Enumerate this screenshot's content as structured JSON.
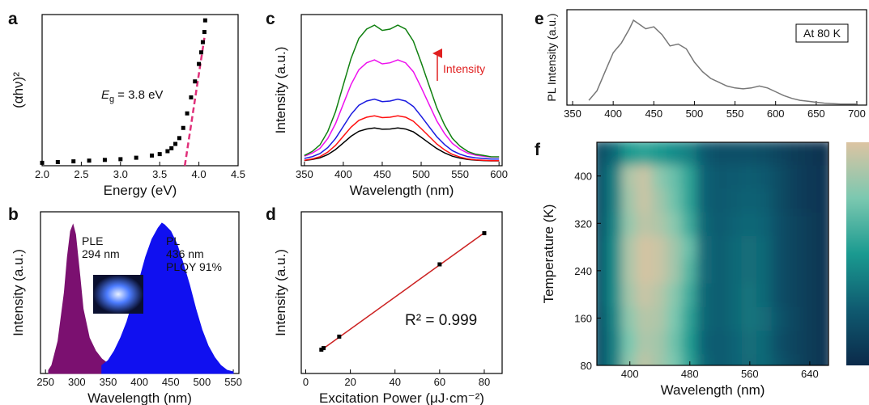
{
  "chart_data": [
    {
      "type": "scatter",
      "panel": "a",
      "x_label": "Energy (eV)",
      "y_label": "(αhν)²",
      "annotation": {
        "symbol": "E",
        "subscript": "g",
        "text": "= 3.8 eV"
      },
      "x": [
        2.0,
        2.2,
        2.4,
        2.6,
        2.8,
        3.0,
        3.2,
        3.4,
        3.5,
        3.6,
        3.65,
        3.7,
        3.75,
        3.8,
        3.85,
        3.9,
        3.95,
        4.0,
        4.03,
        4.05,
        4.07,
        4.08
      ],
      "values": [
        2,
        2.5,
        3,
        3.5,
        4,
        4.5,
        5.5,
        7,
        8,
        10,
        12,
        15,
        19,
        26,
        36,
        47,
        58,
        70,
        78,
        85,
        92,
        100
      ],
      "color": "#000000",
      "fit": {
        "x": [
          3.82,
          4.07
        ],
        "values": [
          0,
          88
        ],
        "color": "#e0307a"
      },
      "xlim": [
        2,
        4.5
      ],
      "ylim": [
        0,
        104
      ],
      "xticks": [
        {
          "value": 2,
          "label": "2.0"
        },
        {
          "value": 2.5,
          "label": "2.5"
        },
        {
          "value": 3,
          "label": "3.0"
        },
        {
          "value": 3.5,
          "label": "3.5"
        },
        {
          "value": 4,
          "label": "4.0"
        },
        {
          "value": 4.5,
          "label": "4.5"
        }
      ]
    },
    {
      "type": "area",
      "panel": "b",
      "x_label": "Wavelength (nm)",
      "y_label": "Intensity (a.u.)",
      "annotations": [
        "PLE",
        "294 nm",
        "PL",
        "436 nm",
        "PLQY 91%"
      ],
      "series": [
        {
          "color": "#7b1070",
          "x": [
            255,
            260,
            270,
            280,
            285,
            290,
            294,
            298,
            305,
            310,
            320,
            330,
            340,
            350,
            355
          ],
          "values": [
            2,
            5,
            20,
            50,
            72,
            88,
            92,
            86,
            60,
            40,
            22,
            14,
            9,
            6,
            2
          ]
        },
        {
          "color": "#1010f0",
          "x": [
            340,
            350,
            360,
            370,
            380,
            390,
            400,
            410,
            420,
            430,
            436,
            440,
            450,
            460,
            470,
            480,
            490,
            500,
            510,
            520,
            530,
            540,
            550
          ],
          "values": [
            5,
            8,
            14,
            22,
            32,
            45,
            58,
            72,
            83,
            90,
            93,
            92,
            88,
            80,
            68,
            55,
            40,
            27,
            17,
            10,
            5,
            2,
            1
          ]
        }
      ],
      "xlim": [
        242,
        559
      ],
      "ylim": [
        0,
        100
      ],
      "xticks": [
        250,
        300,
        350,
        400,
        450,
        500,
        550
      ]
    },
    {
      "type": "line",
      "panel": "c",
      "x_label": "Wavelength (nm)",
      "y_label": "Intensity (a.u.)",
      "annotations": [
        "Intensity"
      ],
      "annotation_color": "#e02020",
      "x": [
        350,
        360,
        370,
        380,
        390,
        400,
        410,
        420,
        430,
        440,
        450,
        460,
        470,
        480,
        490,
        500,
        510,
        520,
        530,
        540,
        550,
        560,
        570,
        580,
        590,
        600
      ],
      "series": [
        {
          "color": "#000000",
          "values": [
            3.4,
            4.1,
            5.2,
            7.4,
            10.7,
            15.1,
            19.5,
            22.8,
            24.3,
            25,
            24.1,
            24.3,
            25,
            24.3,
            22.4,
            18.8,
            15.1,
            11.4,
            8.5,
            6.3,
            5,
            4.1,
            3.7,
            3.4,
            3.2,
            3.2
          ]
        },
        {
          "color": "#ff1010",
          "values": [
            3.6,
            4.5,
            6,
            9,
            13.5,
            19.5,
            25.5,
            30,
            32.1,
            33,
            31.8,
            32.1,
            33,
            32.1,
            29.4,
            24.6,
            19.5,
            14.4,
            10.5,
            7.5,
            5.7,
            4.5,
            3.9,
            3.6,
            3.3,
            3.3
          ]
        },
        {
          "color": "#1a1ae0",
          "values": [
            4.8,
            6,
            8,
            12,
            18,
            26,
            34,
            40,
            42.8,
            44,
            42.4,
            42.8,
            44,
            42.8,
            39.2,
            32.8,
            26,
            19.2,
            14,
            10,
            7.6,
            6,
            5.2,
            4.8,
            4.4,
            4.4
          ]
        },
        {
          "color": "#ee10ee",
          "values": [
            6.3,
            8.3,
            11.5,
            18,
            27.8,
            40.8,
            53.8,
            63.5,
            68.1,
            70,
            67.4,
            68.1,
            70,
            68.1,
            62.2,
            51.8,
            40.8,
            29.7,
            21.3,
            14.8,
            10.9,
            8.3,
            7,
            6.3,
            5.7,
            5.7
          ]
        },
        {
          "color": "#108010",
          "values": [
            6.8,
            9.4,
            13.8,
            22.6,
            35.8,
            53.4,
            71,
            84.2,
            90.4,
            93,
            89.5,
            90.4,
            93,
            90.4,
            82.4,
            68.4,
            53.4,
            38.4,
            27,
            18.2,
            12.9,
            9.4,
            7.6,
            6.8,
            5.9,
            5.9
          ]
        }
      ],
      "xlim": [
        346,
        604
      ],
      "ylim": [
        0,
        100
      ],
      "xticks": [
        350,
        400,
        450,
        500,
        550,
        600
      ]
    },
    {
      "type": "scatter",
      "panel": "d",
      "x_label": "Excitation Power (μJ·cm⁻²)",
      "y_label": "Intensity (a.u.)",
      "annotations": [
        "R² = 0.999"
      ],
      "x": [
        7,
        8,
        15,
        60,
        80
      ],
      "values": [
        14.7,
        15.7,
        22.8,
        67.5,
        86.8
      ],
      "color": "#000000",
      "fit": {
        "x": [
          7,
          80
        ],
        "values": [
          14.5,
          87
        ],
        "color": "#cc2222"
      },
      "xlim": [
        -2,
        88
      ],
      "ylim": [
        0,
        100
      ],
      "xticks": [
        0,
        20,
        40,
        60,
        80
      ]
    },
    {
      "type": "line",
      "panel": "e",
      "y_label": "PL Intensity (a.u.)",
      "annotations": [
        "At 80 K"
      ],
      "x": [
        370,
        380,
        390,
        400,
        410,
        420,
        425,
        430,
        440,
        450,
        460,
        470,
        480,
        490,
        500,
        510,
        520,
        530,
        540,
        550,
        560,
        570,
        580,
        590,
        600,
        610,
        620,
        630,
        640,
        650,
        660,
        680,
        700
      ],
      "series": [
        {
          "color": "#777777",
          "values": [
            5,
            15,
            35,
            55,
            65,
            80,
            89,
            86,
            80,
            82,
            74,
            62,
            64,
            59,
            45,
            35,
            28,
            24,
            20,
            18,
            17,
            18,
            20,
            18,
            14,
            10,
            7,
            5,
            4,
            3,
            2,
            1,
            1
          ]
        }
      ],
      "xlim": [
        343,
        712
      ],
      "ylim": [
        0,
        100
      ],
      "xticks": [
        350,
        400,
        450,
        500,
        550,
        600,
        650,
        700
      ]
    },
    {
      "type": "heatmap",
      "panel": "f",
      "x_label": "Wavelength (nm)",
      "y_label": "Temperature (K)",
      "x": [
        360,
        380,
        400,
        420,
        440,
        460,
        480,
        500,
        520,
        540,
        560,
        580,
        600,
        620,
        640,
        660
      ],
      "y": [
        80,
        120,
        160,
        200,
        240,
        280,
        320,
        360,
        400,
        440
      ],
      "z": [
        [
          0.2,
          0.4,
          0.8,
          0.92,
          0.85,
          0.75,
          0.55,
          0.3,
          0.25,
          0.28,
          0.32,
          0.3,
          0.22,
          0.15,
          0.1,
          0.05
        ],
        [
          0.2,
          0.4,
          0.75,
          0.88,
          0.85,
          0.72,
          0.52,
          0.28,
          0.25,
          0.28,
          0.33,
          0.3,
          0.2,
          0.14,
          0.1,
          0.05
        ],
        [
          0.2,
          0.42,
          0.8,
          0.9,
          0.88,
          0.75,
          0.55,
          0.3,
          0.26,
          0.3,
          0.35,
          0.32,
          0.22,
          0.15,
          0.1,
          0.05
        ],
        [
          0.22,
          0.45,
          0.85,
          0.95,
          0.9,
          0.78,
          0.6,
          0.3,
          0.26,
          0.3,
          0.35,
          0.3,
          0.2,
          0.14,
          0.1,
          0.05
        ],
        [
          0.22,
          0.45,
          0.88,
          0.98,
          0.95,
          0.85,
          0.65,
          0.32,
          0.26,
          0.3,
          0.33,
          0.3,
          0.2,
          0.14,
          0.1,
          0.05
        ],
        [
          0.22,
          0.45,
          0.88,
          0.98,
          0.95,
          0.85,
          0.7,
          0.32,
          0.26,
          0.3,
          0.33,
          0.3,
          0.2,
          0.14,
          0.1,
          0.05
        ],
        [
          0.2,
          0.42,
          0.82,
          0.92,
          0.88,
          0.78,
          0.6,
          0.3,
          0.25,
          0.28,
          0.3,
          0.28,
          0.2,
          0.14,
          0.1,
          0.05
        ],
        [
          0.2,
          0.4,
          0.85,
          0.95,
          0.85,
          0.72,
          0.55,
          0.28,
          0.24,
          0.26,
          0.28,
          0.26,
          0.18,
          0.12,
          0.08,
          0.05
        ],
        [
          0.2,
          0.4,
          0.88,
          0.95,
          0.8,
          0.7,
          0.55,
          0.28,
          0.24,
          0.25,
          0.26,
          0.24,
          0.18,
          0.12,
          0.08,
          0.05
        ],
        [
          0.18,
          0.3,
          0.5,
          0.55,
          0.5,
          0.45,
          0.4,
          0.25,
          0.2,
          0.2,
          0.2,
          0.18,
          0.14,
          0.1,
          0.07,
          0.04
        ]
      ],
      "zlim": [
        0,
        1
      ],
      "colormap": [
        "#0b2a4a",
        "#0f5a70",
        "#1a9a90",
        "#7cc8b0",
        "#dcc4a2"
      ],
      "xlim": [
        356,
        665
      ],
      "ylim": [
        80,
        457
      ],
      "xticks": [
        400,
        480,
        560,
        640
      ],
      "yticks": [
        80,
        160,
        240,
        320,
        400
      ]
    }
  ]
}
